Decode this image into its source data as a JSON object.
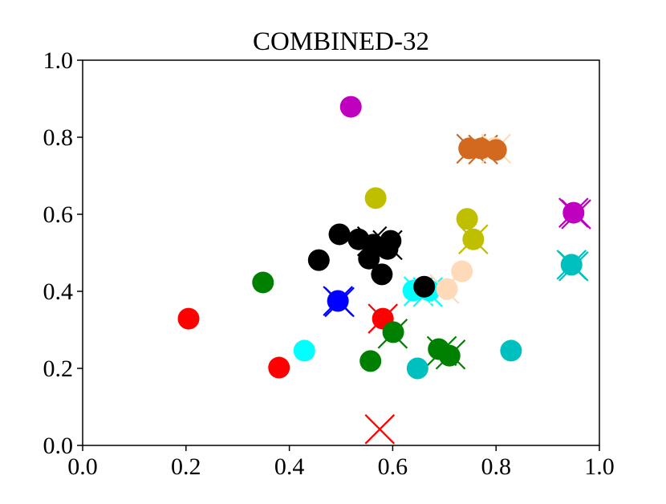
{
  "chart_data": {
    "type": "scatter",
    "title": "COMBINED-32",
    "xlabel": "",
    "ylabel": "",
    "xlim": [
      0.0,
      1.0
    ],
    "ylim": [
      0.0,
      1.0
    ],
    "grid": false,
    "xticks": [
      "0.0",
      "0.2",
      "0.4",
      "0.6",
      "0.8",
      "1.0"
    ],
    "yticks": [
      "0.0",
      "0.2",
      "0.4",
      "0.6",
      "0.8",
      "1.0"
    ],
    "xtick_values": [
      0,
      0.2,
      0.4,
      0.6,
      0.8,
      1.0
    ],
    "ytick_values": [
      0,
      0.2,
      0.4,
      0.6,
      0.8,
      1.0
    ],
    "x_markers": [
      {
        "x": 0.575,
        "y": 0.042,
        "color": "#ff0000"
      },
      {
        "x": 0.581,
        "y": 0.329,
        "color": "#ff0000"
      },
      {
        "x": 0.494,
        "y": 0.375,
        "color": "#0000ff"
      },
      {
        "x": 0.497,
        "y": 0.372,
        "color": "#0000ff"
      },
      {
        "x": 0.56,
        "y": 0.53,
        "color": "#000000"
      },
      {
        "x": 0.59,
        "y": 0.52,
        "color": "#000000"
      },
      {
        "x": 0.65,
        "y": 0.4,
        "color": "#00ffff"
      },
      {
        "x": 0.668,
        "y": 0.398,
        "color": "#00ffff"
      },
      {
        "x": 0.7,
        "y": 0.406,
        "color": "#ffdab9"
      },
      {
        "x": 0.6,
        "y": 0.29,
        "color": "#008000"
      },
      {
        "x": 0.695,
        "y": 0.245,
        "color": "#008000"
      },
      {
        "x": 0.712,
        "y": 0.236,
        "color": "#008000"
      },
      {
        "x": 0.756,
        "y": 0.535,
        "color": "#bfbf00"
      },
      {
        "x": 0.752,
        "y": 0.77,
        "color": "#d2691e"
      },
      {
        "x": 0.775,
        "y": 0.768,
        "color": "#d2691e"
      },
      {
        "x": 0.8,
        "y": 0.77,
        "color": "#ffdab9"
      },
      {
        "x": 0.95,
        "y": 0.604,
        "color": "#bf00bf"
      },
      {
        "x": 0.955,
        "y": 0.6,
        "color": "#bf00bf"
      },
      {
        "x": 0.946,
        "y": 0.469,
        "color": "#00bfbf"
      },
      {
        "x": 0.95,
        "y": 0.465,
        "color": "#00bfbf"
      }
    ],
    "points": [
      {
        "x": 0.797,
        "y": 0.772,
        "color": "#ffdab9"
      },
      {
        "x": 0.519,
        "y": 0.879,
        "color": "#bf00bf"
      },
      {
        "x": 0.748,
        "y": 0.771,
        "color": "#d2691e"
      },
      {
        "x": 0.771,
        "y": 0.771,
        "color": "#d2691e"
      },
      {
        "x": 0.8,
        "y": 0.767,
        "color": "#d2691e"
      },
      {
        "x": 0.567,
        "y": 0.642,
        "color": "#bfbf00"
      },
      {
        "x": 0.744,
        "y": 0.588,
        "color": "#bfbf00"
      },
      {
        "x": 0.756,
        "y": 0.535,
        "color": "#bfbf00"
      },
      {
        "x": 0.95,
        "y": 0.604,
        "color": "#bf00bf"
      },
      {
        "x": 0.946,
        "y": 0.469,
        "color": "#00bfbf"
      },
      {
        "x": 0.734,
        "y": 0.452,
        "color": "#ffdab9"
      },
      {
        "x": 0.64,
        "y": 0.402,
        "color": "#00ffff"
      },
      {
        "x": 0.671,
        "y": 0.402,
        "color": "#00ffff"
      },
      {
        "x": 0.705,
        "y": 0.406,
        "color": "#ffdab9"
      },
      {
        "x": 0.497,
        "y": 0.548,
        "color": "#000000"
      },
      {
        "x": 0.534,
        "y": 0.535,
        "color": "#000000"
      },
      {
        "x": 0.562,
        "y": 0.521,
        "color": "#000000"
      },
      {
        "x": 0.596,
        "y": 0.531,
        "color": "#000000"
      },
      {
        "x": 0.59,
        "y": 0.51,
        "color": "#000000"
      },
      {
        "x": 0.554,
        "y": 0.485,
        "color": "#000000"
      },
      {
        "x": 0.457,
        "y": 0.481,
        "color": "#000000"
      },
      {
        "x": 0.579,
        "y": 0.444,
        "color": "#000000"
      },
      {
        "x": 0.661,
        "y": 0.412,
        "color": "#000000"
      },
      {
        "x": 0.494,
        "y": 0.375,
        "color": "#0000ff"
      },
      {
        "x": 0.349,
        "y": 0.423,
        "color": "#008000"
      },
      {
        "x": 0.581,
        "y": 0.329,
        "color": "#ff0000"
      },
      {
        "x": 0.205,
        "y": 0.329,
        "color": "#ff0000"
      },
      {
        "x": 0.38,
        "y": 0.202,
        "color": "#ff0000"
      },
      {
        "x": 0.429,
        "y": 0.246,
        "color": "#00ffff"
      },
      {
        "x": 0.601,
        "y": 0.294,
        "color": "#008000"
      },
      {
        "x": 0.557,
        "y": 0.219,
        "color": "#008000"
      },
      {
        "x": 0.689,
        "y": 0.25,
        "color": "#008000"
      },
      {
        "x": 0.71,
        "y": 0.233,
        "color": "#008000"
      },
      {
        "x": 0.648,
        "y": 0.2,
        "color": "#00bfbf"
      },
      {
        "x": 0.829,
        "y": 0.246,
        "color": "#00bfbf"
      }
    ]
  }
}
